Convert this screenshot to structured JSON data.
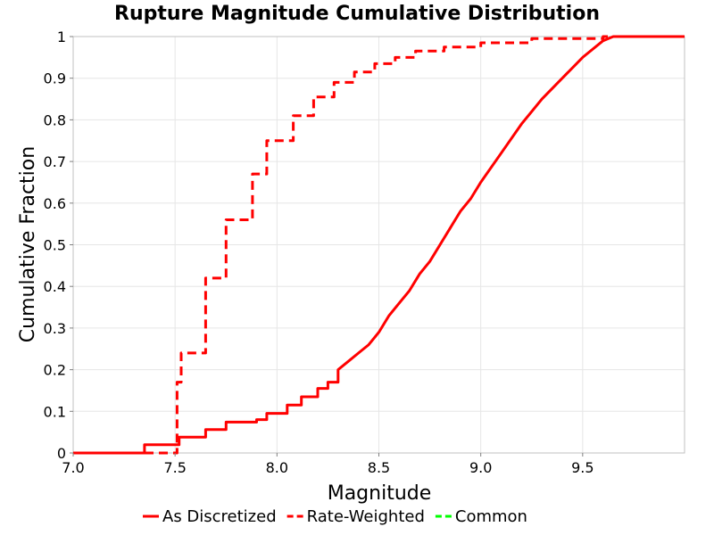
{
  "chart_data": {
    "type": "line",
    "title": "Rupture Magnitude Cumulative Distribution",
    "xlabel": "Magnitude",
    "ylabel": "Cumulative Fraction",
    "xlim": [
      7.0,
      10.0
    ],
    "ylim": [
      0,
      1
    ],
    "x_ticks": [
      "7.0",
      "7.5",
      "8.0",
      "8.5",
      "9.0",
      "9.5"
    ],
    "x_tick_values": [
      7.0,
      7.5,
      8.0,
      8.5,
      9.0,
      9.5
    ],
    "y_ticks": [
      "0",
      "0.1",
      "0.2",
      "0.3",
      "0.4",
      "0.5",
      "0.6",
      "0.7",
      "0.8",
      "0.9",
      "1"
    ],
    "y_tick_values": [
      0,
      0.1,
      0.2,
      0.3,
      0.4,
      0.5,
      0.6,
      0.7,
      0.8,
      0.9,
      1.0
    ],
    "grid": true,
    "legend_position": "bottom",
    "series": [
      {
        "name": "As Discretized",
        "color": "#ff0000",
        "dash": "solid",
        "x": [
          7.0,
          7.35,
          7.35,
          7.52,
          7.52,
          7.65,
          7.65,
          7.75,
          7.75,
          7.9,
          7.9,
          7.95,
          7.95,
          8.05,
          8.05,
          8.12,
          8.12,
          8.2,
          8.2,
          8.25,
          8.25,
          8.3,
          8.3,
          8.35,
          8.4,
          8.45,
          8.5,
          8.55,
          8.6,
          8.65,
          8.7,
          8.75,
          8.8,
          8.85,
          8.9,
          8.95,
          9.0,
          9.1,
          9.2,
          9.3,
          9.4,
          9.5,
          9.6,
          9.65,
          9.7,
          10.0
        ],
        "y": [
          0.0,
          0.0,
          0.02,
          0.02,
          0.038,
          0.038,
          0.056,
          0.056,
          0.074,
          0.074,
          0.08,
          0.08,
          0.095,
          0.095,
          0.115,
          0.115,
          0.135,
          0.135,
          0.155,
          0.155,
          0.17,
          0.17,
          0.2,
          0.22,
          0.24,
          0.26,
          0.29,
          0.33,
          0.36,
          0.39,
          0.43,
          0.46,
          0.5,
          0.54,
          0.58,
          0.61,
          0.65,
          0.72,
          0.79,
          0.85,
          0.9,
          0.95,
          0.99,
          1.0,
          1.0,
          1.0
        ]
      },
      {
        "name": "Rate-Weighted",
        "color": "#ff0000",
        "dash": "dashed",
        "x": [
          7.0,
          7.51,
          7.51,
          7.53,
          7.53,
          7.65,
          7.65,
          7.75,
          7.75,
          7.88,
          7.88,
          7.95,
          7.95,
          8.08,
          8.08,
          8.18,
          8.18,
          8.28,
          8.28,
          8.38,
          8.38,
          8.48,
          8.48,
          8.58,
          8.58,
          8.68,
          8.68,
          8.82,
          8.82,
          9.0,
          9.0,
          9.25,
          9.25,
          9.6,
          9.6,
          10.0
        ],
        "y": [
          0.0,
          0.0,
          0.17,
          0.17,
          0.24,
          0.24,
          0.42,
          0.42,
          0.56,
          0.56,
          0.67,
          0.67,
          0.75,
          0.75,
          0.81,
          0.81,
          0.855,
          0.855,
          0.89,
          0.89,
          0.915,
          0.915,
          0.935,
          0.935,
          0.95,
          0.95,
          0.965,
          0.965,
          0.975,
          0.975,
          0.985,
          0.985,
          0.995,
          0.995,
          1.0,
          1.0
        ]
      },
      {
        "name": "Common",
        "color": "#00ff00",
        "dash": "dashed",
        "x": [],
        "y": []
      }
    ]
  }
}
